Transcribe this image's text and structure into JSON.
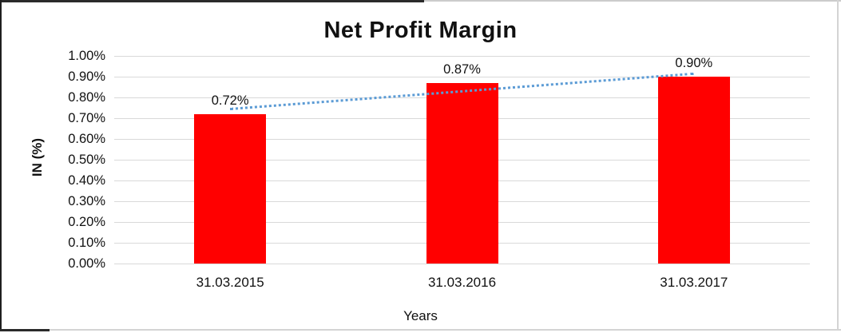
{
  "chart_data": {
    "type": "bar",
    "title": "Net Profit Margin",
    "categories": [
      "31.03.2015",
      "31.03.2016",
      "31.03.2017"
    ],
    "values": [
      0.72,
      0.87,
      0.9
    ],
    "data_labels": [
      "0.72%",
      "0.87%",
      "0.90%"
    ],
    "xlabel": "Years",
    "ylabel": "IN (%)",
    "ylim": [
      0,
      1.0
    ],
    "ytick_step": 0.1,
    "ytick_labels": [
      "0.00%",
      "0.10%",
      "0.20%",
      "0.30%",
      "0.40%",
      "0.50%",
      "0.60%",
      "0.70%",
      "0.80%",
      "0.90%",
      "1.00%"
    ],
    "grid": true,
    "legend": "none",
    "bar_color": "#FF0000",
    "gridline_color": "#d9d9d9",
    "text_color": "#111111",
    "trendline": {
      "type": "linear",
      "style": "dotted",
      "color": "#5B9BD5",
      "start_value": 0.745,
      "end_value": 0.915
    }
  }
}
